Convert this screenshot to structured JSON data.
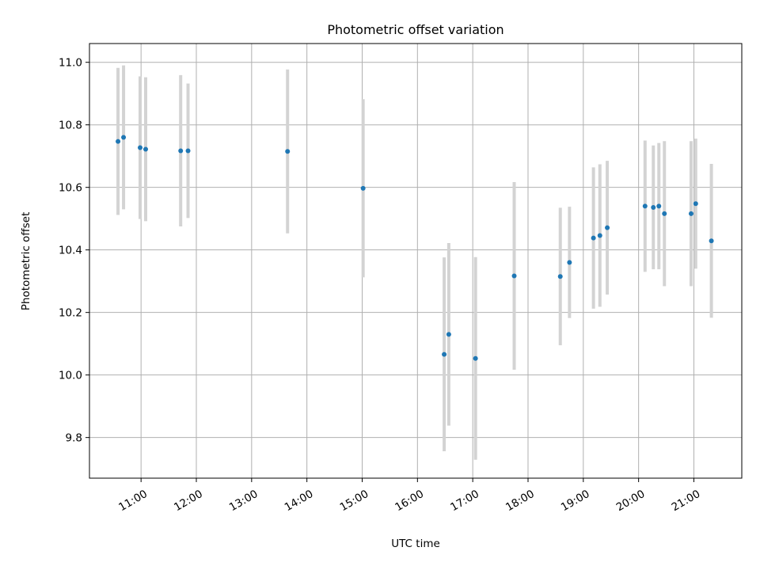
{
  "chart_data": {
    "type": "scatter",
    "title": "Photometric offset variation",
    "xlabel": "UTC time",
    "ylabel": "Photometric offset",
    "x_tick_labels": [
      "11:00",
      "12:00",
      "13:00",
      "14:00",
      "15:00",
      "16:00",
      "17:00",
      "18:00",
      "19:00",
      "20:00",
      "21:00"
    ],
    "y_tick_labels": [
      "9.8",
      "10.0",
      "10.2",
      "10.4",
      "10.6",
      "10.8",
      "11.0"
    ],
    "xlim": [
      "10:04",
      "21:52"
    ],
    "ylim": [
      9.67,
      11.06
    ],
    "grid": true,
    "point_color": "#1f77b4",
    "errorbar_color": "#d3d3d3",
    "points": [
      {
        "x": "10:35",
        "y": 10.747,
        "err": 0.235
      },
      {
        "x": "10:41",
        "y": 10.76,
        "err": 0.23
      },
      {
        "x": "10:59",
        "y": 10.727,
        "err": 0.228
      },
      {
        "x": "11:05",
        "y": 10.722,
        "err": 0.23
      },
      {
        "x": "11:43",
        "y": 10.717,
        "err": 0.242
      },
      {
        "x": "11:51",
        "y": 10.717,
        "err": 0.215
      },
      {
        "x": "13:39",
        "y": 10.715,
        "err": 0.262
      },
      {
        "x": "15:01",
        "y": 10.597,
        "err": 0.285
      },
      {
        "x": "16:29",
        "y": 10.066,
        "err": 0.31
      },
      {
        "x": "16:34",
        "y": 10.13,
        "err": 0.292
      },
      {
        "x": "17:03",
        "y": 10.053,
        "err": 0.324
      },
      {
        "x": "17:45",
        "y": 10.317,
        "err": 0.3
      },
      {
        "x": "18:35",
        "y": 10.315,
        "err": 0.22
      },
      {
        "x": "18:45",
        "y": 10.36,
        "err": 0.178
      },
      {
        "x": "19:11",
        "y": 10.438,
        "err": 0.226
      },
      {
        "x": "19:18",
        "y": 10.446,
        "err": 0.228
      },
      {
        "x": "19:26",
        "y": 10.471,
        "err": 0.214
      },
      {
        "x": "20:07",
        "y": 10.54,
        "err": 0.21
      },
      {
        "x": "20:16",
        "y": 10.536,
        "err": 0.198
      },
      {
        "x": "20:22",
        "y": 10.54,
        "err": 0.202
      },
      {
        "x": "20:28",
        "y": 10.516,
        "err": 0.232
      },
      {
        "x": "20:57",
        "y": 10.516,
        "err": 0.232
      },
      {
        "x": "21:02",
        "y": 10.548,
        "err": 0.208
      },
      {
        "x": "21:19",
        "y": 10.429,
        "err": 0.246
      }
    ]
  }
}
